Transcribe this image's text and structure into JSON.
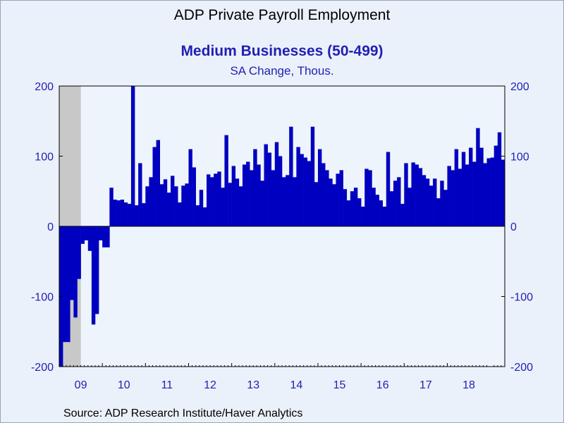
{
  "header": {
    "title": "ADP Private Payroll Employment",
    "subtitle": "Medium Businesses (50-499)",
    "unit": "SA Change, Thous."
  },
  "footer": {
    "source": "Source:  ADP Research Institute/Haver Analytics"
  },
  "colors": {
    "bar": "#0000c0",
    "recession_shade": "#c8c8c8",
    "plot_bg": "#eef4fb",
    "axis_text": "#1f1fb4"
  },
  "chart_data": {
    "type": "bar",
    "title": "Medium Businesses (50-499)",
    "subtitle": "SA Change, Thous.",
    "ylim": [
      -200,
      200
    ],
    "yticks": [
      -200,
      -100,
      0,
      100,
      200
    ],
    "ytick_labels": [
      "-200",
      "-100",
      "0",
      "100",
      "200"
    ],
    "year_labels": [
      "09",
      "10",
      "11",
      "12",
      "13",
      "14",
      "15",
      "16",
      "17",
      "18"
    ],
    "x_start": "2009-01",
    "recession": {
      "start": "2009-01",
      "end": "2009-06"
    },
    "grid": false,
    "legend": "none",
    "values": [
      -200,
      -165,
      -165,
      -105,
      -130,
      -75,
      -25,
      -20,
      -35,
      -140,
      -125,
      -20,
      -30,
      -30,
      55,
      38,
      37,
      38,
      34,
      32,
      200,
      30,
      90,
      33,
      57,
      70,
      113,
      123,
      60,
      67,
      48,
      72,
      57,
      34,
      58,
      61,
      110,
      84,
      30,
      52,
      27,
      74,
      70,
      75,
      78,
      55,
      130,
      62,
      86,
      68,
      57,
      88,
      92,
      80,
      110,
      88,
      65,
      117,
      105,
      80,
      120,
      100,
      70,
      73,
      142,
      70,
      113,
      103,
      98,
      93,
      142,
      63,
      110,
      90,
      80,
      68,
      60,
      75,
      80,
      53,
      37,
      50,
      55,
      40,
      28,
      82,
      80,
      55,
      45,
      37,
      28,
      106,
      50,
      65,
      70,
      32,
      90,
      55,
      91,
      88,
      83,
      73,
      68,
      58,
      68,
      40,
      65,
      52,
      86,
      80,
      110,
      82,
      106,
      88,
      112,
      92,
      140,
      112,
      90,
      97,
      98,
      115,
      134,
      95
    ]
  }
}
